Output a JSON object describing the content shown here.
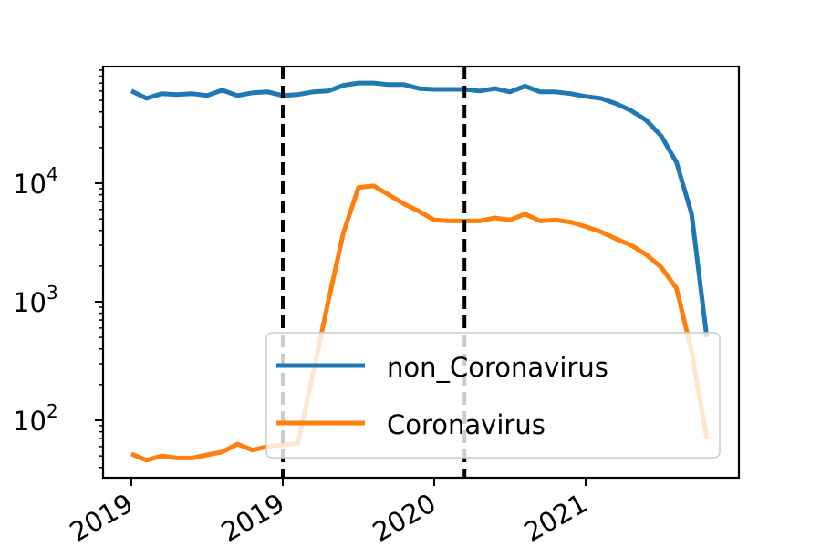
{
  "chart_data": {
    "type": "line",
    "title": "",
    "xlabel": "",
    "ylabel": "",
    "y_scale": "log",
    "ylim": [
      30,
      90000
    ],
    "grid": false,
    "legend_position": "lower-right",
    "x_tick_labels": [
      "2019",
      "2019",
      "2020",
      "2021"
    ],
    "y_ticks": [
      {
        "value": 100,
        "base": "10",
        "exp": "2"
      },
      {
        "value": 1000,
        "base": "10",
        "exp": "3"
      },
      {
        "value": 10000,
        "base": "10",
        "exp": "4"
      }
    ],
    "x": [
      0,
      1,
      2,
      3,
      4,
      5,
      6,
      7,
      8,
      9,
      10,
      11,
      12,
      13,
      14,
      15,
      16,
      17,
      18,
      19,
      20,
      21,
      22,
      23,
      24,
      25,
      26,
      27,
      28,
      29,
      30,
      31,
      32,
      33,
      34,
      35,
      36,
      37,
      38
    ],
    "vertical_lines_at_x": [
      10,
      22
    ],
    "series": [
      {
        "name": "non_Coronavirus",
        "color": "#1f77b4",
        "values": [
          60000,
          52000,
          57000,
          56000,
          57000,
          55000,
          61000,
          55000,
          58000,
          59000,
          55000,
          56000,
          59000,
          60000,
          67000,
          70000,
          70000,
          68000,
          68000,
          63000,
          62000,
          62000,
          62000,
          60000,
          63000,
          59000,
          66000,
          59000,
          59000,
          57000,
          54000,
          52000,
          47000,
          41000,
          34000,
          25000,
          15000,
          5500,
          500
        ]
      },
      {
        "name": "Coronavirus",
        "color": "#ff7f0e",
        "values": [
          52,
          46,
          50,
          48,
          48,
          51,
          54,
          63,
          56,
          60,
          62,
          64,
          250,
          1000,
          3800,
          9200,
          9500,
          8000,
          6700,
          5800,
          4900,
          4800,
          4800,
          4800,
          5100,
          4900,
          5500,
          4800,
          4900,
          4700,
          4300,
          3900,
          3400,
          3000,
          2500,
          1950,
          1300,
          380,
          70
        ]
      }
    ]
  }
}
